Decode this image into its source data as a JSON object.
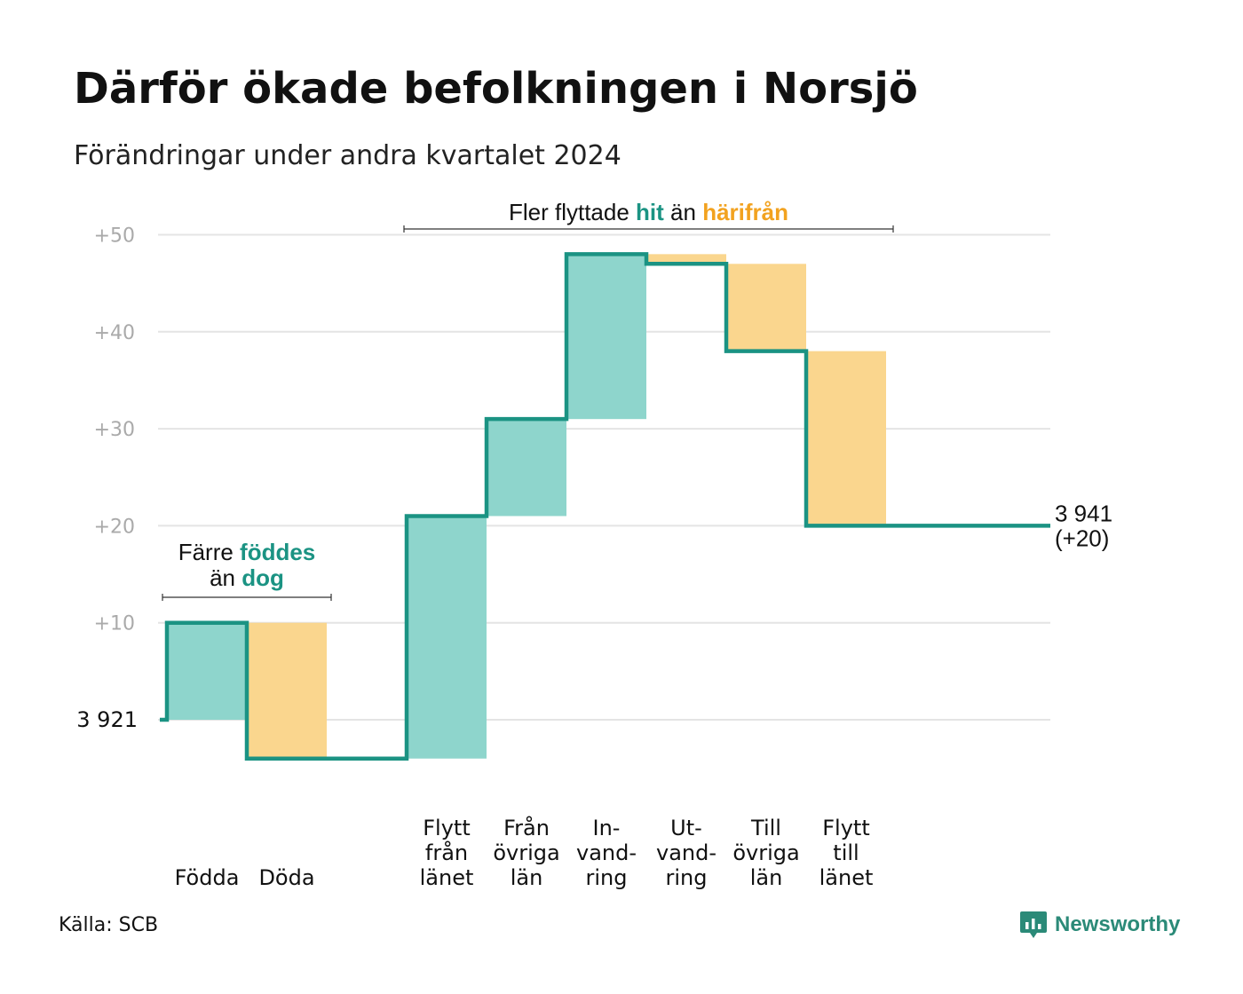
{
  "title": "Därför ökade befolkningen i Norsjö",
  "subtitle": "Förändringar under andra kvartalet 2024",
  "source": "Källa: SCB",
  "brand": "Newsworthy",
  "colors": {
    "inflow": "#8ed5cc",
    "outflow": "#fad68e",
    "line": "#1b9383",
    "grid": "#e4e4e4",
    "tick": "#aaaaaa",
    "accent_teal": "#1b9383",
    "accent_orange": "#f2a21f"
  },
  "chart_data": {
    "type": "waterfall",
    "base_value": 3921,
    "ylim": [
      -6,
      50
    ],
    "ytick_values": [
      10,
      20,
      30,
      40,
      50
    ],
    "ytick_labels": [
      "+10",
      "+20",
      "+30",
      "+40",
      "+50"
    ],
    "base_label": "3  921",
    "steps": [
      {
        "label": [
          "Födda"
        ],
        "kind": "in",
        "from": 0,
        "to": 10
      },
      {
        "label": [
          "Döda"
        ],
        "kind": "out",
        "from": 10,
        "to": -4
      },
      {
        "label": [
          "Flytt",
          "från",
          "länet"
        ],
        "kind": "in",
        "from": -4,
        "to": 21
      },
      {
        "label": [
          "Från",
          "övriga",
          "län"
        ],
        "kind": "in",
        "from": 21,
        "to": 31
      },
      {
        "label": [
          "In-",
          "vand-",
          "ring"
        ],
        "kind": "in",
        "from": 31,
        "to": 48
      },
      {
        "label": [
          "Ut-",
          "vand-",
          "ring"
        ],
        "kind": "out",
        "from": 48,
        "to": 47
      },
      {
        "label": [
          "Till",
          "övriga",
          "län"
        ],
        "kind": "out",
        "from": 47,
        "to": 38
      },
      {
        "label": [
          "Flytt",
          "till",
          "länet"
        ],
        "kind": "out",
        "from": 38,
        "to": 20
      }
    ],
    "final_value_lines": [
      "3 941",
      "(+20)"
    ],
    "annotations": [
      {
        "lines": [
          [
            "Färre ",
            "föddes"
          ],
          [
            "än ",
            "dog"
          ]
        ],
        "span": [
          0,
          1
        ]
      },
      {
        "lines": [
          [
            "Fler flyttade ",
            "hit",
            " än ",
            "härifrån"
          ]
        ],
        "span": [
          2,
          7
        ]
      }
    ]
  }
}
